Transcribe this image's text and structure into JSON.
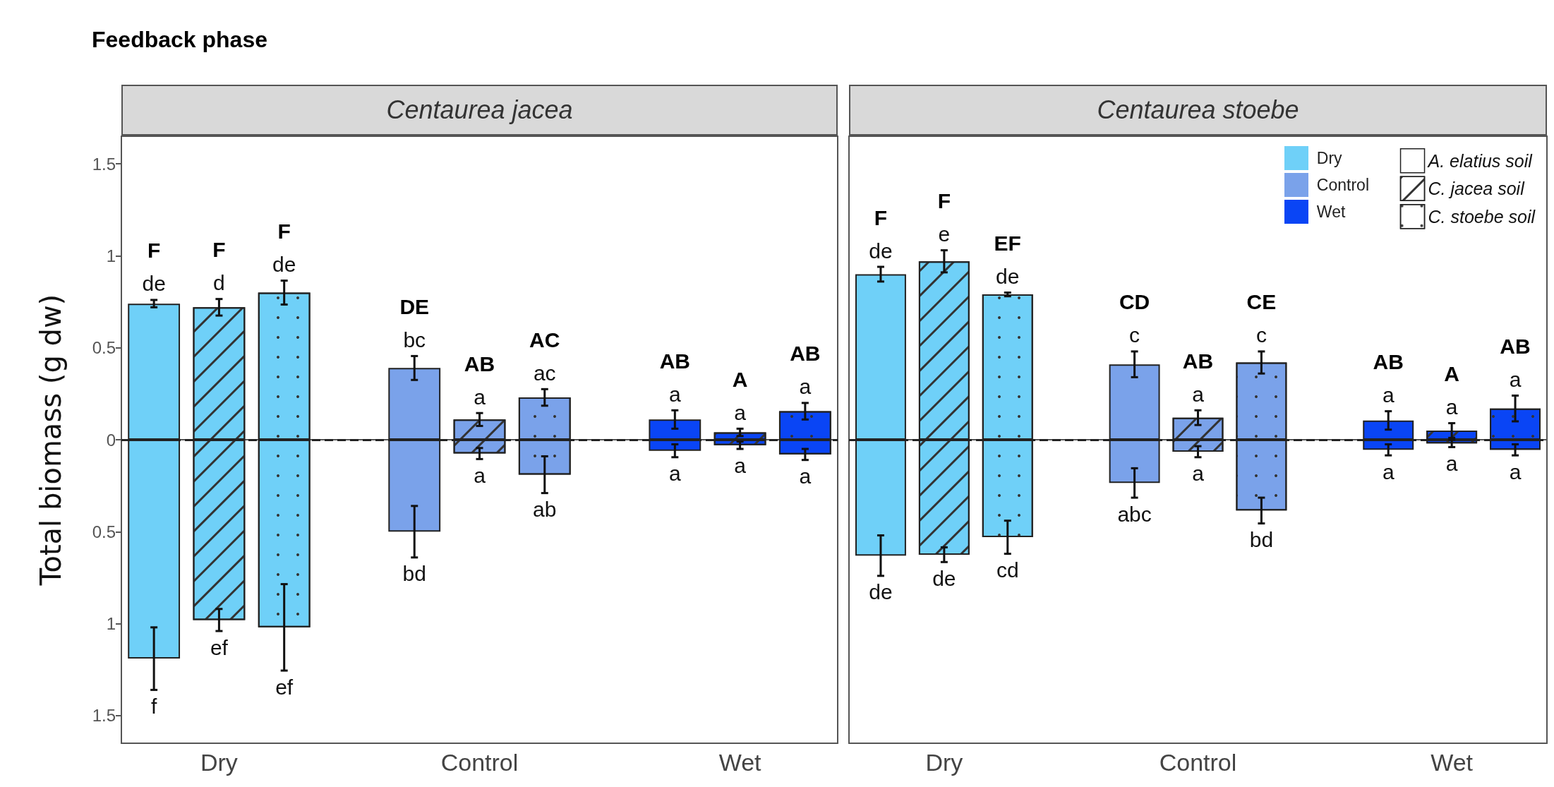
{
  "chart_data": [
    {
      "type": "bar",
      "title": "Centaurea jacea",
      "ylabel": "Total biomass (g dw)",
      "categories": [
        null,
        "Dry",
        null,
        null,
        null,
        "Control",
        null,
        null,
        null,
        "Wet",
        null
      ],
      "stacked": true,
      "ylim": [
        -1.65,
        1.65
      ],
      "yticks": [
        {
          "value": -1.5,
          "label": "1.5"
        },
        {
          "value": -1,
          "label": "1"
        },
        {
          "value": -0.5,
          "label": "0.5"
        },
        0,
        0.5,
        1,
        1.5
      ],
      "ref_lines": [
        {
          "axis": "y",
          "value": 0,
          "line_style": "dashed",
          "color": "#222222"
        }
      ],
      "annotations": [
        "Feedback phase",
        "F",
        "F",
        "F",
        "DE",
        "AB",
        "AC",
        "AB",
        "A",
        "AB"
      ],
      "series": [
        {
          "colors": [
            "#6fd0f8",
            null,
            null,
            null,
            "#7aa2ea",
            null,
            null,
            null,
            "#0a45f5",
            null,
            null
          ],
          "values": [
            0.74,
            null,
            null,
            null,
            0.39,
            null,
            null,
            null,
            0.11,
            null,
            null
          ],
          "errors": [
            0.02,
            null,
            null,
            null,
            0.065,
            null,
            null,
            null,
            0.05,
            null,
            null
          ],
          "value_labels": [
            "de",
            null,
            null,
            null,
            "bc",
            null,
            null,
            null,
            "a",
            null,
            null
          ]
        },
        {
          "colors": [
            "#6fd0f8",
            null,
            null,
            null,
            "#7aa2ea",
            null,
            null,
            null,
            "#0a45f5",
            null,
            null
          ],
          "values": [
            -1.19,
            null,
            null,
            null,
            -0.5,
            null,
            null,
            null,
            -0.06,
            null,
            null
          ],
          "errors": [
            0.17,
            null,
            null,
            null,
            0.14,
            null,
            null,
            null,
            0.035,
            null,
            null
          ],
          "value_labels": [
            "f",
            null,
            null,
            null,
            "bd",
            null,
            null,
            null,
            "a",
            null,
            null
          ]
        },
        {
          "line_style": "solid",
          "colors": [
            null,
            "#6fd0f8",
            null,
            null,
            null,
            "#7aa2ea",
            null,
            null,
            null,
            "#0a45f5",
            null
          ],
          "values": [
            null,
            0.72,
            null,
            null,
            null,
            0.11,
            null,
            null,
            null,
            0.04,
            null
          ],
          "errors": [
            null,
            0.045,
            null,
            null,
            null,
            0.035,
            null,
            null,
            null,
            0.02,
            null
          ],
          "value_labels": [
            null,
            "d",
            null,
            null,
            null,
            "a",
            null,
            null,
            null,
            "a",
            null
          ]
        },
        {
          "line_style": "solid",
          "colors": [
            null,
            "#6fd0f8",
            null,
            null,
            null,
            "#7aa2ea",
            null,
            null,
            null,
            "#0a45f5",
            null
          ],
          "values": [
            null,
            -0.98,
            null,
            null,
            null,
            -0.075,
            null,
            null,
            null,
            -0.03,
            null
          ],
          "errors": [
            null,
            0.06,
            null,
            null,
            null,
            0.03,
            null,
            null,
            null,
            0.02,
            null
          ],
          "value_labels": [
            null,
            "ef",
            null,
            null,
            null,
            "a",
            null,
            null,
            null,
            "a",
            null
          ]
        },
        {
          "line_style": "dotted",
          "colors": [
            null,
            null,
            "#6fd0f8",
            null,
            null,
            null,
            "#7aa2ea",
            null,
            null,
            null,
            "#0a45f5"
          ],
          "values": [
            null,
            null,
            0.8,
            null,
            null,
            null,
            0.23,
            null,
            null,
            null,
            0.155
          ],
          "errors": [
            null,
            null,
            0.065,
            null,
            null,
            null,
            0.045,
            null,
            null,
            null,
            0.045
          ],
          "value_labels": [
            null,
            null,
            "de",
            null,
            null,
            null,
            "ac",
            null,
            null,
            null,
            "a"
          ]
        },
        {
          "line_style": "dotted",
          "colors": [
            null,
            null,
            "#6fd0f8",
            null,
            null,
            null,
            "#7aa2ea",
            null,
            null,
            null,
            "#0a45f5"
          ],
          "values": [
            null,
            null,
            -1.02,
            null,
            null,
            null,
            -0.19,
            null,
            null,
            null,
            -0.08
          ],
          "errors": [
            null,
            null,
            0.235,
            null,
            null,
            null,
            0.1,
            null,
            null,
            null,
            0.03
          ],
          "value_labels": [
            null,
            null,
            "ef",
            null,
            null,
            null,
            "ab",
            null,
            null,
            null,
            "a"
          ]
        }
      ]
    },
    {
      "type": "bar",
      "title": "Centaurea stoebe",
      "categories": [
        null,
        "Dry",
        null,
        null,
        null,
        "Control",
        null,
        null,
        null,
        "Wet",
        null
      ],
      "stacked": true,
      "tick_labels": "x",
      "legend": "top right",
      "ylim": [
        -1.65,
        1.65
      ],
      "ref_lines": [
        {
          "axis": "y",
          "value": 0,
          "line_style": "dashed",
          "color": "#222222"
        }
      ],
      "annotations": [
        "F",
        "F",
        "EF",
        "CD",
        "AB",
        "CE",
        "AB",
        "A",
        "AB"
      ],
      "series": [
        {
          "name": "A. elatius soil",
          "colors": [
            "#6fd0f8",
            null,
            null,
            null,
            "#7aa2ea",
            null,
            null,
            null,
            "#0a45f5",
            null,
            null
          ],
          "values": [
            0.9,
            null,
            null,
            null,
            0.41,
            null,
            null,
            null,
            0.105,
            null,
            null
          ],
          "errors": [
            0.04,
            null,
            null,
            null,
            0.07,
            null,
            null,
            null,
            0.05,
            null,
            null
          ],
          "value_labels": [
            "de",
            null,
            null,
            null,
            "c",
            null,
            null,
            null,
            "a",
            null,
            null
          ]
        },
        {
          "colors": [
            "#6fd0f8",
            null,
            null,
            null,
            "#7aa2ea",
            null,
            null,
            null,
            "#0a45f5",
            null,
            null
          ],
          "values": [
            -0.63,
            null,
            null,
            null,
            -0.235,
            null,
            null,
            null,
            -0.055,
            null,
            null
          ],
          "errors": [
            0.11,
            null,
            null,
            null,
            0.08,
            null,
            null,
            null,
            0.03,
            null,
            null
          ],
          "value_labels": [
            "de",
            null,
            null,
            null,
            "abc",
            null,
            null,
            null,
            "a",
            null,
            null
          ]
        },
        {
          "name": "C. jacea soil",
          "line_style": "solid",
          "colors": [
            null,
            "#6fd0f8",
            null,
            null,
            null,
            "#7aa2ea",
            null,
            null,
            null,
            "#0a45f5",
            null
          ],
          "values": [
            null,
            0.97,
            null,
            null,
            null,
            0.12,
            null,
            null,
            null,
            0.05,
            null
          ],
          "errors": [
            null,
            0.06,
            null,
            null,
            null,
            0.04,
            null,
            null,
            null,
            0.04,
            null
          ],
          "value_labels": [
            null,
            "e",
            null,
            null,
            null,
            "a",
            null,
            null,
            null,
            "a",
            null
          ]
        },
        {
          "line_style": "solid",
          "colors": [
            null,
            "#6fd0f8",
            null,
            null,
            null,
            "#7aa2ea",
            null,
            null,
            null,
            "#0a45f5",
            null
          ],
          "values": [
            null,
            -0.625,
            null,
            null,
            null,
            -0.065,
            null,
            null,
            null,
            -0.02,
            null
          ],
          "errors": [
            null,
            0.04,
            null,
            null,
            null,
            0.03,
            null,
            null,
            null,
            0.02,
            null
          ],
          "value_labels": [
            null,
            "de",
            null,
            null,
            null,
            "a",
            null,
            null,
            null,
            "a",
            null
          ]
        },
        {
          "name": "C. stoebe soil",
          "line_style": "dotted",
          "colors": [
            null,
            null,
            "#6fd0f8",
            null,
            null,
            null,
            "#7aa2ea",
            null,
            null,
            null,
            "#0a45f5"
          ],
          "values": [
            null,
            null,
            0.79,
            null,
            null,
            null,
            0.42,
            null,
            null,
            null,
            0.17
          ],
          "errors": [
            null,
            null,
            0.01,
            null,
            null,
            null,
            0.06,
            null,
            null,
            null,
            0.07
          ],
          "value_labels": [
            null,
            null,
            "de",
            null,
            null,
            null,
            "c",
            null,
            null,
            null,
            "a"
          ]
        },
        {
          "line_style": "dotted",
          "colors": [
            null,
            null,
            "#6fd0f8",
            null,
            null,
            null,
            "#7aa2ea",
            null,
            null,
            null,
            "#0a45f5"
          ],
          "values": [
            null,
            null,
            -0.53,
            null,
            null,
            null,
            -0.385,
            null,
            null,
            null,
            -0.055
          ],
          "errors": [
            null,
            null,
            0.09,
            null,
            null,
            null,
            0.07,
            null,
            null,
            null,
            0.03
          ],
          "value_labels": [
            null,
            null,
            "cd",
            null,
            null,
            null,
            "bd",
            null,
            null,
            null,
            "a"
          ]
        }
      ]
    }
  ]
}
